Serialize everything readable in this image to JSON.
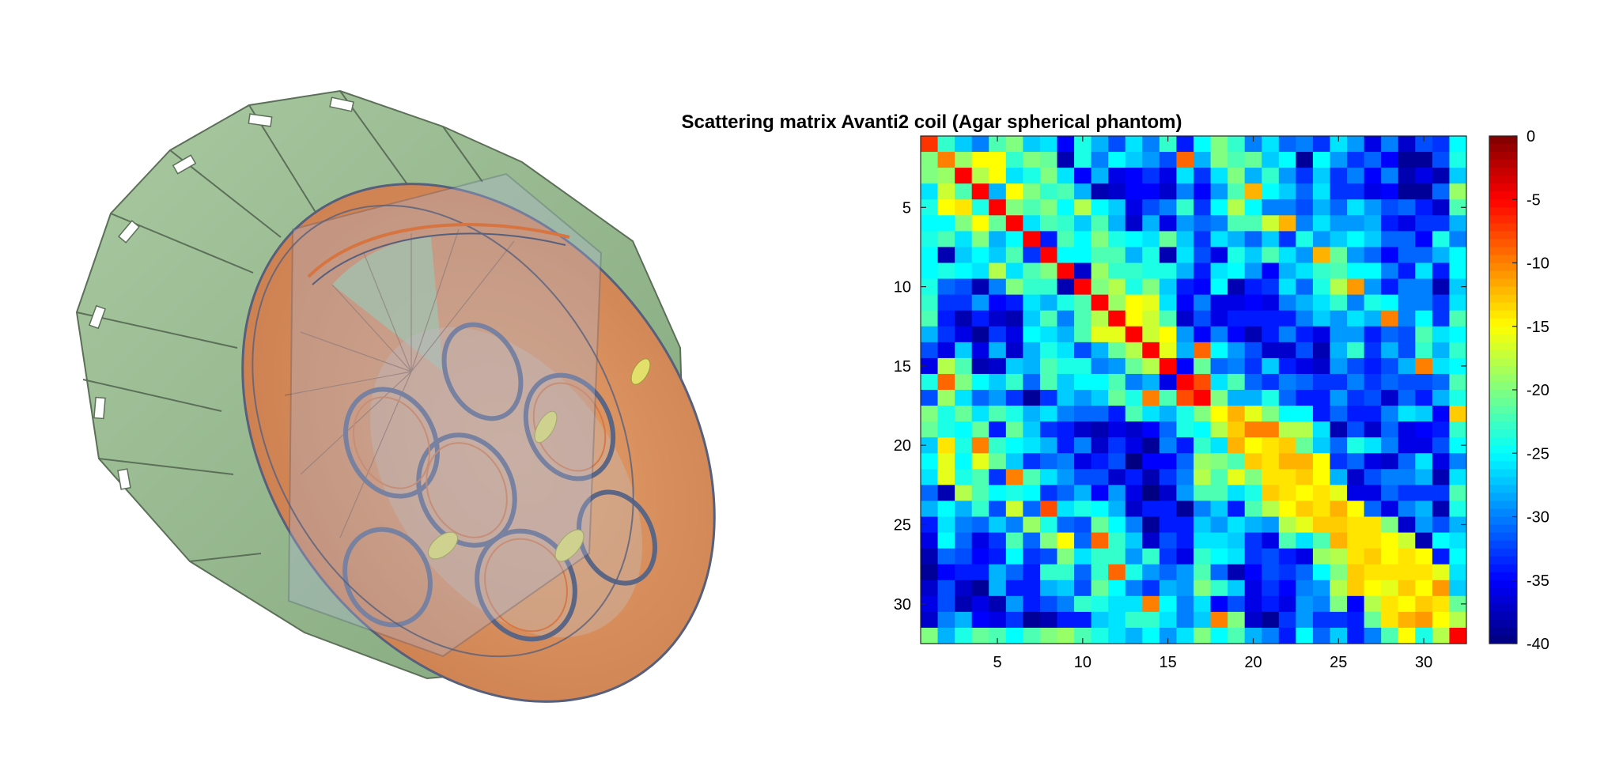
{
  "render": {
    "left_panel": {
      "icon": "mri-coil-3d-render",
      "colors": {
        "shield_green": "#9dbf95",
        "shield_dark": "#7e9f77",
        "interior_orange": "#d9935e",
        "interior_copper": "#c9794a",
        "glass_blue": "#b7bfd8",
        "loop_outline": "#56607d",
        "yellow_part": "#e2e06a"
      }
    }
  },
  "chart_data": {
    "type": "heatmap",
    "title": "Scattering matrix Avanti2 coil (Agar spherical phantom)",
    "xlabel": "",
    "ylabel": "",
    "rows": 32,
    "cols": 32,
    "xlim": [
      0.5,
      32.5
    ],
    "ylim": [
      0.5,
      32.5
    ],
    "y_direction": "reverse",
    "x_ticks": [
      5,
      10,
      15,
      20,
      25,
      30
    ],
    "y_ticks": [
      5,
      10,
      15,
      20,
      25,
      30
    ],
    "colorbar": {
      "location": "right",
      "clim": [
        -40,
        0
      ],
      "ticks": [
        0,
        -5,
        -10,
        -15,
        -20,
        -25,
        -30,
        -35,
        -40
      ],
      "colormap": "jet"
    },
    "grid": false,
    "values_note_dB": "matrix values in dB, estimated from the image",
    "values": [
      [
        -7,
        -23,
        -27,
        -30,
        -22,
        -20,
        -27,
        -26,
        -35,
        -24,
        -28,
        -32,
        -26,
        -30,
        -23,
        -34,
        -25,
        -20,
        -23,
        -30,
        -26,
        -31,
        -30,
        -33,
        -26,
        -29,
        -36,
        -30,
        -37,
        -32,
        -33,
        -25
      ],
      [
        -20,
        -10,
        -19,
        -15,
        -15,
        -23,
        -20,
        -21,
        -38,
        -24,
        -30,
        -25,
        -27,
        -29,
        -32,
        -9,
        -28,
        -20,
        -22,
        -21,
        -27,
        -25,
        -39,
        -25,
        -29,
        -33,
        -31,
        -35,
        -39,
        -39,
        -32,
        -24
      ],
      [
        -20,
        -19,
        -5,
        -18,
        -15,
        -26,
        -24,
        -20,
        -26,
        -35,
        -28,
        -36,
        -35,
        -33,
        -36,
        -26,
        -33,
        -26,
        -20,
        -28,
        -23,
        -29,
        -33,
        -27,
        -33,
        -30,
        -35,
        -30,
        -38,
        -36,
        -38,
        -27
      ],
      [
        -26,
        -17,
        -22,
        -5,
        -28,
        -15,
        -20,
        -23,
        -22,
        -28,
        -38,
        -37,
        -35,
        -35,
        -37,
        -30,
        -35,
        -29,
        -22,
        -12,
        -25,
        -27,
        -31,
        -26,
        -33,
        -33,
        -36,
        -35,
        -39,
        -39,
        -31,
        -19
      ],
      [
        -24,
        -15,
        -14,
        -24,
        -5,
        -20,
        -22,
        -20,
        -25,
        -18,
        -25,
        -27,
        -36,
        -32,
        -30,
        -23,
        -33,
        -25,
        -18,
        -25,
        -30,
        -30,
        -32,
        -28,
        -31,
        -26,
        -29,
        -32,
        -31,
        -34,
        -37,
        -22
      ],
      [
        -25,
        -25,
        -20,
        -15,
        -21,
        -5,
        -26,
        -22,
        -23,
        -27,
        -22,
        -28,
        -37,
        -28,
        -36,
        -29,
        -31,
        -30,
        -22,
        -22,
        -17,
        -12,
        -30,
        -26,
        -29,
        -29,
        -28,
        -34,
        -36,
        -33,
        -33,
        -28
      ],
      [
        -24,
        -22,
        -26,
        -20,
        -28,
        -25,
        -5,
        -34,
        -22,
        -25,
        -20,
        -24,
        -25,
        -26,
        -21,
        -27,
        -33,
        -26,
        -28,
        -31,
        -27,
        -33,
        -24,
        -29,
        -27,
        -25,
        -27,
        -31,
        -31,
        -35,
        -24,
        -30
      ],
      [
        -25,
        -38,
        -27,
        -25,
        -27,
        -22,
        -33,
        -5,
        -25,
        -25,
        -22,
        -22,
        -28,
        -24,
        -38,
        -26,
        -32,
        -36,
        -24,
        -27,
        -22,
        -26,
        -29,
        -12,
        -21,
        -29,
        -31,
        -35,
        -31,
        -31,
        -28,
        -25
      ],
      [
        -25,
        -24,
        -25,
        -26,
        -18,
        -26,
        -22,
        -20,
        -5,
        -37,
        -19,
        -23,
        -23,
        -24,
        -24,
        -28,
        -34,
        -26,
        -25,
        -29,
        -35,
        -28,
        -26,
        -23,
        -22,
        -25,
        -25,
        -30,
        -34,
        -26,
        -34,
        -25
      ],
      [
        -24,
        -31,
        -32,
        -38,
        -30,
        -20,
        -23,
        -23,
        -38,
        -5,
        -20,
        -18,
        -24,
        -20,
        -27,
        -34,
        -35,
        -25,
        -38,
        -34,
        -33,
        -26,
        -31,
        -24,
        -18,
        -11,
        -29,
        -34,
        -30,
        -30,
        -38,
        -27
      ],
      [
        -23,
        -33,
        -33,
        -29,
        -35,
        -34,
        -26,
        -28,
        -24,
        -22,
        -5,
        -19,
        -15,
        -16,
        -26,
        -35,
        -30,
        -36,
        -36,
        -35,
        -36,
        -30,
        -28,
        -26,
        -23,
        -30,
        -24,
        -25,
        -30,
        -30,
        -33,
        -26
      ],
      [
        -22,
        -34,
        -38,
        -34,
        -37,
        -38,
        -27,
        -22,
        -30,
        -22,
        -18,
        -5,
        -15,
        -17,
        -22,
        -37,
        -32,
        -36,
        -34,
        -34,
        -34,
        -34,
        -30,
        -27,
        -29,
        -26,
        -28,
        -10,
        -30,
        -25,
        -33,
        -22
      ],
      [
        -28,
        -33,
        -36,
        -39,
        -33,
        -36,
        -25,
        -26,
        -28,
        -22,
        -16,
        -16,
        -5,
        -17,
        -15,
        -29,
        -35,
        -30,
        -35,
        -38,
        -34,
        -30,
        -34,
        -36,
        -29,
        -29,
        -34,
        -31,
        -32,
        -22,
        -26,
        -25
      ],
      [
        -32,
        -36,
        -27,
        -36,
        -28,
        -37,
        -28,
        -24,
        -26,
        -32,
        -28,
        -21,
        -18,
        -5,
        -16,
        -28,
        -9,
        -25,
        -29,
        -32,
        -37,
        -37,
        -32,
        -38,
        -28,
        -23,
        -33,
        -28,
        -32,
        -23,
        -28,
        -23
      ],
      [
        -36,
        -18,
        -22,
        -38,
        -37,
        -27,
        -28,
        -22,
        -24,
        -24,
        -30,
        -29,
        -21,
        -18,
        -5,
        -35,
        -21,
        -31,
        -30,
        -33,
        -27,
        -34,
        -36,
        -37,
        -29,
        -32,
        -34,
        -32,
        -28,
        -10,
        -26,
        -25
      ],
      [
        -24,
        -9,
        -20,
        -25,
        -27,
        -23,
        -31,
        -22,
        -27,
        -25,
        -25,
        -22,
        -30,
        -28,
        -36,
        -5,
        -8,
        -26,
        -22,
        -31,
        -33,
        -30,
        -31,
        -33,
        -33,
        -30,
        -33,
        -31,
        -32,
        -32,
        -31,
        -22
      ],
      [
        -32,
        -19,
        -26,
        -31,
        -29,
        -33,
        -39,
        -33,
        -27,
        -29,
        -27,
        -21,
        -24,
        -10,
        -22,
        -8,
        -5,
        -20,
        -28,
        -28,
        -24,
        -31,
        -34,
        -34,
        -29,
        -33,
        -32,
        -37,
        -31,
        -34,
        -28,
        -24
      ],
      [
        -20,
        -24,
        -21,
        -26,
        -22,
        -24,
        -28,
        -26,
        -30,
        -31,
        -31,
        -34,
        -22,
        -26,
        -28,
        -24,
        -20,
        -15,
        -12,
        -16,
        -20,
        -25,
        -25,
        -34,
        -31,
        -34,
        -34,
        -30,
        -26,
        -27,
        -35,
        -13
      ],
      [
        -21,
        -24,
        -25,
        -21,
        -34,
        -21,
        -27,
        -33,
        -34,
        -37,
        -38,
        -36,
        -37,
        -35,
        -31,
        -24,
        -25,
        -18,
        -13,
        -10,
        -10,
        -18,
        -18,
        -26,
        -38,
        -32,
        -37,
        -31,
        -36,
        -35,
        -34,
        -23
      ],
      [
        -27,
        -14,
        -24,
        -10,
        -23,
        -25,
        -26,
        -28,
        -34,
        -30,
        -37,
        -33,
        -36,
        -39,
        -30,
        -34,
        -23,
        -26,
        -12,
        -15,
        -14,
        -13,
        -21,
        -27,
        -31,
        -24,
        -26,
        -30,
        -36,
        -36,
        -32,
        -25
      ],
      [
        -25,
        -16,
        -25,
        -16,
        -21,
        -27,
        -33,
        -31,
        -30,
        -36,
        -34,
        -32,
        -40,
        -35,
        -35,
        -31,
        -19,
        -20,
        -22,
        -13,
        -14,
        -12,
        -12,
        -15,
        -33,
        -31,
        -36,
        -37,
        -31,
        -26,
        -36,
        -30
      ],
      [
        -26,
        -16,
        -24,
        -22,
        -33,
        -10,
        -22,
        -26,
        -29,
        -32,
        -32,
        -37,
        -34,
        -38,
        -33,
        -30,
        -18,
        -22,
        -16,
        -20,
        -14,
        -14,
        -13,
        -15,
        -28,
        -37,
        -32,
        -30,
        -30,
        -28,
        -38,
        -26
      ],
      [
        -31,
        -38,
        -18,
        -22,
        -25,
        -24,
        -25,
        -33,
        -31,
        -28,
        -35,
        -29,
        -36,
        -40,
        -37,
        -29,
        -22,
        -22,
        -26,
        -24,
        -13,
        -14,
        -15,
        -14,
        -16,
        -36,
        -36,
        -31,
        -33,
        -33,
        -33,
        -22
      ],
      [
        -28,
        -25,
        -28,
        -23,
        -32,
        -17,
        -31,
        -8,
        -26,
        -24,
        -25,
        -28,
        -37,
        -34,
        -34,
        -39,
        -30,
        -27,
        -34,
        -22,
        -18,
        -15,
        -13,
        -14,
        -12,
        -15,
        -31,
        -36,
        -30,
        -28,
        -38,
        -24
      ],
      [
        -34,
        -26,
        -30,
        -31,
        -27,
        -30,
        -19,
        -24,
        -31,
        -32,
        -21,
        -25,
        -30,
        -39,
        -34,
        -34,
        -27,
        -29,
        -26,
        -28,
        -29,
        -18,
        -16,
        -13,
        -13,
        -14,
        -14,
        -20,
        -37,
        -29,
        -32,
        -28
      ],
      [
        -36,
        -25,
        -31,
        -36,
        -33,
        -22,
        -31,
        -20,
        -15,
        -31,
        -9,
        -23,
        -27,
        -37,
        -32,
        -34,
        -26,
        -26,
        -27,
        -33,
        -36,
        -22,
        -26,
        -22,
        -12,
        -14,
        -14,
        -15,
        -17,
        -38,
        -25,
        -26
      ],
      [
        -38,
        -31,
        -32,
        -35,
        -34,
        -25,
        -33,
        -32,
        -20,
        -26,
        -23,
        -23,
        -29,
        -23,
        -33,
        -36,
        -23,
        -25,
        -26,
        -33,
        -32,
        -34,
        -36,
        -19,
        -18,
        -14,
        -13,
        -15,
        -14,
        -15,
        -34,
        -25
      ],
      [
        -39,
        -35,
        -34,
        -34,
        -28,
        -31,
        -34,
        -23,
        -23,
        -31,
        -23,
        -9,
        -24,
        -29,
        -31,
        -29,
        -22,
        -31,
        -38,
        -35,
        -32,
        -33,
        -31,
        -25,
        -20,
        -13,
        -14,
        -14,
        -14,
        -14,
        -16,
        -26
      ],
      [
        -37,
        -32,
        -37,
        -39,
        -28,
        -34,
        -34,
        -28,
        -27,
        -32,
        -21,
        -25,
        -30,
        -33,
        -28,
        -29,
        -20,
        -23,
        -27,
        -36,
        -33,
        -35,
        -30,
        -29,
        -18,
        -13,
        -15,
        -16,
        -13,
        -15,
        -11,
        -27
      ],
      [
        -36,
        -32,
        -38,
        -36,
        -38,
        -29,
        -34,
        -32,
        -30,
        -23,
        -24,
        -26,
        -26,
        -10,
        -25,
        -30,
        -26,
        -35,
        -32,
        -36,
        -34,
        -36,
        -29,
        -30,
        -20,
        -35,
        -18,
        -14,
        -15,
        -13,
        -14,
        -21
      ],
      [
        -37,
        -30,
        -28,
        -35,
        -36,
        -33,
        -39,
        -38,
        -34,
        -34,
        -27,
        -26,
        -23,
        -23,
        -26,
        -30,
        -27,
        -10,
        -20,
        -37,
        -39,
        -33,
        -29,
        -33,
        -33,
        -34,
        -21,
        -14,
        -12,
        -11,
        -15,
        -18
      ],
      [
        -20,
        -28,
        -24,
        -21,
        -22,
        -25,
        -22,
        -20,
        -19,
        -22,
        -24,
        -26,
        -28,
        -25,
        -29,
        -26,
        -20,
        -25,
        -22,
        -28,
        -30,
        -34,
        -25,
        -31,
        -27,
        -34,
        -30,
        -22,
        -15,
        -24,
        -18,
        -5
      ]
    ]
  }
}
